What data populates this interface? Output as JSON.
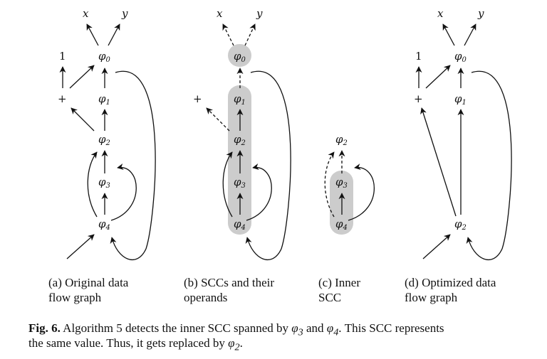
{
  "nodes": {
    "x": "x",
    "y": "y",
    "one": "1",
    "plus": "+",
    "phi": "φ",
    "s0": "0",
    "s1": "1",
    "s2": "2",
    "s3": "3",
    "s4": "4"
  },
  "subcaptions": {
    "a": {
      "line1": "(a)  Original  data",
      "line2": "flow graph"
    },
    "b": {
      "line1": "(b) SCCs and their",
      "line2": "operands"
    },
    "c": {
      "line1": "(c)    Inner",
      "line2": "SCC"
    },
    "d": {
      "line1": "(d) Optimized data",
      "line2": "flow graph"
    }
  },
  "caption": {
    "label": "Fig. 6.",
    "line1_a": "Algorithm 5 detects the inner SCC spanned by ",
    "line1_b": " and ",
    "line1_c": ". This SCC represents",
    "line2_a": "the same value. Thus, it gets replaced by ",
    "line2_b": "."
  },
  "colors": {
    "ink": "#111111",
    "scc_fill": "#cccccc"
  }
}
